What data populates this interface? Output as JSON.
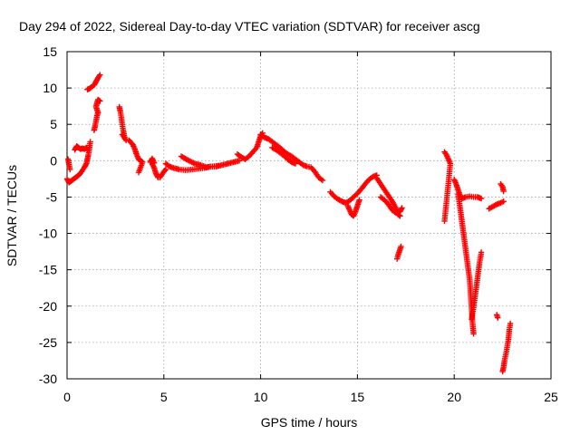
{
  "chart_data": {
    "type": "scatter",
    "title": "Day 294 of 2022, Sidereal Day-to-day VTEC variation (SDTVAR) for receiver ascg",
    "xlabel": "GPS time / hours",
    "ylabel": "SDTVAR / TECUs",
    "xlim": [
      0,
      25
    ],
    "ylim": [
      -30,
      15
    ],
    "xticks": [
      0,
      5,
      10,
      15,
      20,
      25
    ],
    "yticks": [
      -30,
      -25,
      -20,
      -15,
      -10,
      -5,
      0,
      5,
      10,
      15
    ],
    "grid": true,
    "marker": "+",
    "series": [
      {
        "name": "SDTVAR",
        "color": "#ff0000",
        "segments": [
          [
            [
              0.0,
              -2.5
            ],
            [
              0.1,
              -3.0
            ],
            [
              0.2,
              -2.8
            ],
            [
              0.3,
              -2.6
            ],
            [
              0.4,
              -2.4
            ],
            [
              0.5,
              -2.2
            ],
            [
              0.6,
              -2.0
            ],
            [
              0.7,
              -1.7
            ],
            [
              0.8,
              -1.3
            ],
            [
              0.9,
              -0.9
            ],
            [
              1.0,
              -0.4
            ],
            [
              1.05,
              0.2
            ],
            [
              1.1,
              0.8
            ],
            [
              1.15,
              1.6
            ],
            [
              1.2,
              2.6
            ]
          ],
          [
            [
              0.05,
              0.2
            ],
            [
              0.1,
              -0.5
            ],
            [
              0.15,
              -1.2
            ]
          ],
          [
            [
              0.4,
              1.5
            ],
            [
              0.5,
              2.0
            ],
            [
              0.6,
              1.8
            ],
            [
              0.7,
              1.6
            ],
            [
              0.8,
              1.7
            ],
            [
              0.9,
              1.6
            ],
            [
              1.0,
              1.8
            ],
            [
              1.05,
              1.5
            ]
          ],
          [
            [
              1.05,
              9.8
            ],
            [
              1.15,
              9.9
            ],
            [
              1.25,
              10.1
            ],
            [
              1.4,
              10.4
            ],
            [
              1.5,
              10.9
            ],
            [
              1.6,
              11.4
            ],
            [
              1.7,
              11.8
            ]
          ],
          [
            [
              1.4,
              4.2
            ],
            [
              1.45,
              4.8
            ],
            [
              1.5,
              5.5
            ],
            [
              1.55,
              6.2
            ],
            [
              1.6,
              6.6
            ],
            [
              1.5,
              7.4
            ],
            [
              1.55,
              8.0
            ],
            [
              1.6,
              8.4
            ],
            [
              1.7,
              8.2
            ]
          ],
          [
            [
              2.7,
              7.4
            ],
            [
              2.75,
              6.8
            ],
            [
              2.8,
              6.0
            ],
            [
              2.85,
              5.0
            ],
            [
              2.9,
              4.2
            ],
            [
              2.95,
              3.5
            ],
            [
              3.0,
              3.0
            ],
            [
              3.05,
              2.8
            ],
            [
              2.85,
              3.6
            ]
          ],
          [
            [
              3.2,
              2.8
            ],
            [
              3.3,
              2.5
            ],
            [
              3.4,
              2.2
            ],
            [
              3.5,
              1.6
            ],
            [
              3.6,
              0.8
            ],
            [
              3.7,
              0.2
            ],
            [
              3.8,
              0.0
            ],
            [
              3.9,
              -0.2
            ],
            [
              3.7,
              -1.6
            ]
          ],
          [
            [
              4.4,
              -0.4
            ],
            [
              4.5,
              -1.0
            ],
            [
              4.6,
              -1.8
            ],
            [
              4.7,
              -2.3
            ],
            [
              4.8,
              -2.3
            ],
            [
              4.9,
              -1.9
            ],
            [
              5.0,
              -1.5
            ],
            [
              5.1,
              -1.2
            ]
          ],
          [
            [
              4.3,
              -0.2
            ],
            [
              4.4,
              0.3
            ],
            [
              4.5,
              -0.3
            ]
          ],
          [
            [
              5.1,
              -0.4
            ],
            [
              5.3,
              -0.8
            ],
            [
              5.5,
              -1.0
            ],
            [
              5.8,
              -1.2
            ],
            [
              6.1,
              -1.3
            ],
            [
              6.5,
              -1.2
            ],
            [
              6.8,
              -1.1
            ],
            [
              7.1,
              -1.0
            ],
            [
              7.4,
              -0.8
            ],
            [
              7.7,
              -0.8
            ],
            [
              8.0,
              -0.6
            ],
            [
              8.3,
              -0.4
            ],
            [
              8.6,
              -0.2
            ],
            [
              8.9,
              0.0
            ]
          ],
          [
            [
              5.9,
              0.6
            ],
            [
              6.1,
              0.3
            ],
            [
              6.3,
              0.0
            ],
            [
              6.6,
              -0.4
            ],
            [
              6.9,
              -0.6
            ],
            [
              7.2,
              -0.9
            ],
            [
              7.5,
              -0.8
            ],
            [
              7.8,
              -0.7
            ]
          ],
          [
            [
              8.8,
              0.9
            ],
            [
              9.0,
              0.5
            ],
            [
              9.2,
              0.2
            ],
            [
              9.4,
              0.6
            ],
            [
              9.6,
              1.2
            ],
            [
              9.8,
              1.8
            ],
            [
              9.9,
              2.6
            ],
            [
              10.0,
              3.4
            ],
            [
              10.1,
              3.8
            ]
          ],
          [
            [
              10.0,
              3.6
            ],
            [
              10.2,
              3.2
            ],
            [
              10.4,
              3.0
            ],
            [
              10.6,
              2.6
            ],
            [
              10.8,
              2.2
            ],
            [
              11.0,
              1.8
            ],
            [
              11.2,
              1.3
            ],
            [
              11.4,
              0.9
            ],
            [
              11.6,
              0.6
            ],
            [
              11.8,
              0.2
            ],
            [
              12.0,
              -0.2
            ],
            [
              12.2,
              -0.6
            ],
            [
              12.4,
              -0.8
            ],
            [
              12.6,
              -0.9
            ],
            [
              12.8,
              -1.5
            ],
            [
              13.0,
              -2.3
            ],
            [
              13.2,
              -2.7
            ]
          ],
          [
            [
              10.6,
              1.8
            ],
            [
              10.8,
              1.5
            ],
            [
              11.0,
              1.1
            ],
            [
              11.2,
              0.7
            ],
            [
              11.4,
              0.2
            ],
            [
              11.6,
              -0.2
            ],
            [
              11.8,
              -0.4
            ]
          ],
          [
            [
              13.6,
              -4.3
            ],
            [
              13.8,
              -4.9
            ],
            [
              14.0,
              -5.3
            ],
            [
              14.2,
              -5.6
            ],
            [
              14.4,
              -5.8
            ],
            [
              14.6,
              -5.5
            ],
            [
              14.8,
              -5.0
            ],
            [
              15.0,
              -4.5
            ],
            [
              15.2,
              -3.9
            ],
            [
              15.4,
              -3.2
            ],
            [
              15.6,
              -2.6
            ],
            [
              15.8,
              -2.2
            ],
            [
              16.0,
              -2.0
            ]
          ],
          [
            [
              14.5,
              -6.2
            ],
            [
              14.6,
              -6.8
            ],
            [
              14.7,
              -7.4
            ],
            [
              14.8,
              -7.6
            ],
            [
              14.9,
              -7.0
            ],
            [
              15.0,
              -6.2
            ],
            [
              15.1,
              -5.4
            ]
          ],
          [
            [
              16.0,
              -2.4
            ],
            [
              16.2,
              -3.2
            ],
            [
              16.4,
              -4.0
            ],
            [
              16.6,
              -4.8
            ],
            [
              16.8,
              -5.6
            ],
            [
              17.0,
              -6.6
            ],
            [
              17.1,
              -7.4
            ],
            [
              17.2,
              -7.6
            ]
          ],
          [
            [
              16.2,
              -5.0
            ],
            [
              16.4,
              -5.4
            ],
            [
              16.6,
              -6.0
            ],
            [
              16.8,
              -6.8
            ],
            [
              17.0,
              -7.2
            ],
            [
              17.2,
              -7.0
            ],
            [
              17.3,
              -6.5
            ]
          ],
          [
            [
              17.05,
              -13.5
            ],
            [
              17.1,
              -13.0
            ],
            [
              17.15,
              -12.6
            ],
            [
              17.2,
              -12.2
            ],
            [
              17.25,
              -11.8
            ]
          ],
          [
            [
              19.5,
              1.2
            ],
            [
              19.6,
              0.8
            ],
            [
              19.7,
              0.2
            ],
            [
              19.8,
              -0.4
            ],
            [
              19.5,
              -8.3
            ]
          ],
          [
            [
              20.0,
              -2.6
            ],
            [
              20.1,
              -3.2
            ],
            [
              20.2,
              -4.0
            ],
            [
              20.3,
              -4.8
            ],
            [
              20.4,
              -5.2
            ],
            [
              20.6,
              -5.0
            ],
            [
              20.8,
              -4.9
            ],
            [
              21.0,
              -5.0
            ],
            [
              21.2,
              -5.0
            ],
            [
              21.4,
              -5.2
            ]
          ],
          [
            [
              20.2,
              -4.6
            ],
            [
              20.3,
              -6.4
            ],
            [
              20.4,
              -8.4
            ],
            [
              20.5,
              -10.4
            ],
            [
              20.6,
              -12.4
            ],
            [
              20.7,
              -14.4
            ],
            [
              20.8,
              -16.4
            ],
            [
              20.85,
              -18.4
            ],
            [
              20.9,
              -20.4
            ],
            [
              20.95,
              -22.4
            ],
            [
              21.0,
              -23.8
            ]
          ],
          [
            [
              20.9,
              -21.8
            ],
            [
              21.0,
              -20.2
            ],
            [
              21.1,
              -18.2
            ],
            [
              21.2,
              -16.2
            ],
            [
              21.3,
              -14.2
            ],
            [
              21.4,
              -12.6
            ]
          ],
          [
            [
              21.8,
              -6.6
            ],
            [
              22.0,
              -6.3
            ],
            [
              22.2,
              -6.0
            ],
            [
              22.4,
              -5.8
            ],
            [
              22.55,
              -5.6
            ]
          ],
          [
            [
              22.2,
              -21.2
            ],
            [
              22.25,
              -21.6
            ]
          ],
          [
            [
              22.4,
              -3.2
            ],
            [
              22.5,
              -3.6
            ],
            [
              22.55,
              -4.2
            ]
          ],
          [
            [
              22.5,
              -29.0
            ],
            [
              22.55,
              -28.4
            ],
            [
              22.6,
              -27.5
            ],
            [
              22.7,
              -26.2
            ],
            [
              22.8,
              -24.6
            ],
            [
              22.85,
              -23.2
            ],
            [
              22.9,
              -22.4
            ]
          ]
        ]
      }
    ]
  }
}
